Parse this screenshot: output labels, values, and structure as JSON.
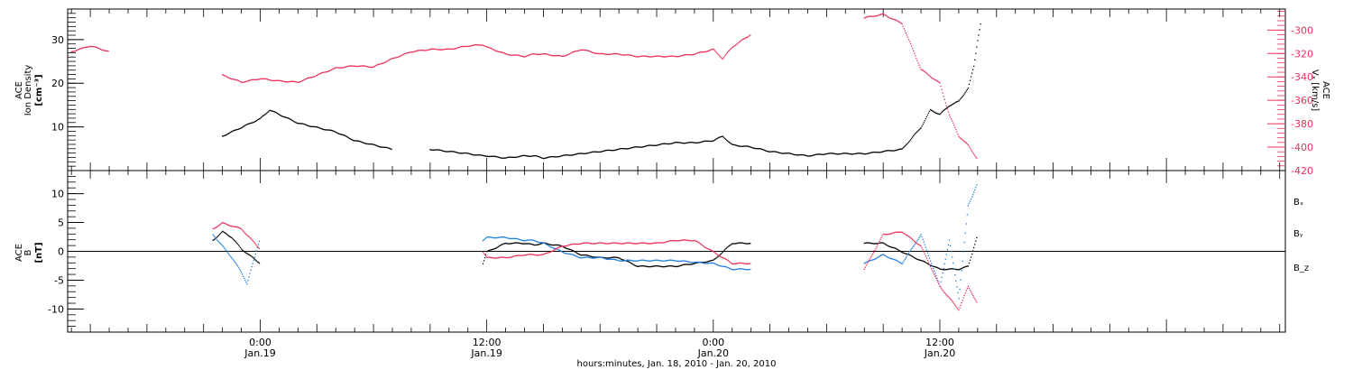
{
  "chart_data": [
    {
      "type": "scatter",
      "panel": "top",
      "ylabel_lines": [
        "ACE",
        "Ion Density",
        "[cm⁻³]"
      ],
      "y2label_lines": [
        "ACE",
        "Vₓ [km/s]"
      ],
      "ylim": [
        0,
        37
      ],
      "y2lim": [
        -420,
        -282
      ],
      "yticks": [
        10,
        20,
        30
      ],
      "y2ticks": [
        -300,
        -320,
        -340,
        -360,
        -380,
        -400,
        -420
      ],
      "series": [
        {
          "color": "#000000",
          "axis": "left",
          "points": [
            [
              -10,
              8
            ],
            [
              -8,
              7
            ],
            [
              -6,
              6.5
            ],
            [
              -4,
              7
            ],
            [
              -2,
              8
            ],
            [
              -1,
              10
            ],
            [
              0,
              12
            ],
            [
              0.5,
              14
            ],
            [
              1,
              13
            ],
            [
              2,
              11
            ],
            [
              3,
              10
            ],
            [
              4,
              9
            ],
            [
              5,
              7
            ],
            [
              6,
              6
            ],
            [
              7,
              5
            ],
            [
              9,
              5
            ],
            [
              10,
              4.5
            ],
            [
              11,
              4
            ],
            [
              11.8,
              3.5
            ],
            [
              12,
              3.5
            ],
            [
              13,
              3
            ],
            [
              14,
              3.5
            ],
            [
              14.5,
              3.5
            ],
            [
              15,
              3
            ],
            [
              16,
              3.5
            ],
            [
              17,
              4
            ],
            [
              18,
              4.5
            ],
            [
              19,
              5
            ],
            [
              20,
              5.5
            ],
            [
              21,
              6
            ],
            [
              22,
              6.5
            ],
            [
              23,
              6.5
            ],
            [
              24,
              7
            ],
            [
              24.5,
              8
            ],
            [
              25,
              6
            ],
            [
              26,
              5.5
            ],
            [
              27,
              4.5
            ],
            [
              28,
              4
            ],
            [
              29,
              3.5
            ],
            [
              30,
              4
            ],
            [
              31,
              4
            ],
            [
              32,
              4
            ],
            [
              33,
              4.5
            ],
            [
              34,
              5
            ],
            [
              35,
              10
            ],
            [
              35.5,
              14
            ],
            [
              36,
              13
            ],
            [
              36.5,
              15
            ],
            [
              37,
              16
            ],
            [
              37.5,
              19
            ],
            [
              37.8,
              24
            ],
            [
              38,
              30
            ],
            [
              38.2,
              35
            ]
          ]
        },
        {
          "color": "#e8325c",
          "axis": "right",
          "points": [
            [
              -10,
              -318
            ],
            [
              -9,
              -313
            ],
            [
              -8,
              -318
            ],
            [
              -6,
              -322
            ],
            [
              -4,
              -330
            ],
            [
              -2,
              -338
            ],
            [
              -1,
              -344
            ],
            [
              0,
              -341
            ],
            [
              1,
              -343
            ],
            [
              2,
              -344
            ],
            [
              3,
              -338
            ],
            [
              4,
              -332
            ],
            [
              5,
              -330
            ],
            [
              6,
              -331
            ],
            [
              7,
              -324
            ],
            [
              8,
              -318
            ],
            [
              9,
              -316
            ],
            [
              10,
              -316
            ],
            [
              11,
              -313
            ],
            [
              11.8,
              -312
            ],
            [
              12,
              -314
            ],
            [
              13,
              -320
            ],
            [
              14,
              -322
            ],
            [
              14.5,
              -320
            ],
            [
              15,
              -320
            ],
            [
              16,
              -322
            ],
            [
              17,
              -316
            ],
            [
              18,
              -320
            ],
            [
              19,
              -320
            ],
            [
              20,
              -322
            ],
            [
              21,
              -322
            ],
            [
              22,
              -322
            ],
            [
              23,
              -320
            ],
            [
              24,
              -316
            ],
            [
              24.5,
              -324
            ],
            [
              25,
              -314
            ],
            [
              26,
              -303
            ],
            [
              28,
              -298
            ],
            [
              30,
              -293
            ],
            [
              32,
              -289
            ],
            [
              33,
              -286
            ],
            [
              34,
              -294
            ],
            [
              35,
              -333
            ],
            [
              36,
              -345
            ],
            [
              36.5,
              -372
            ],
            [
              37,
              -390
            ],
            [
              37.5,
              -398
            ],
            [
              38,
              -410
            ]
          ]
        }
      ]
    },
    {
      "type": "scatter",
      "panel": "bottom",
      "ylabel_lines": [
        "ACE",
        "B",
        "[nT]"
      ],
      "ylim": [
        -14,
        14
      ],
      "yticks": [
        10,
        5,
        0,
        -5,
        -10
      ],
      "series": [
        {
          "name": "Bₓ",
          "color": "#000000",
          "points": [
            [
              -10,
              -1.5
            ],
            [
              -8,
              -0.5
            ],
            [
              -6,
              -0.5
            ],
            [
              -4,
              -0.5
            ],
            [
              -2.5,
              2
            ],
            [
              -2,
              3.5
            ],
            [
              -1.5,
              2.5
            ],
            [
              -1,
              0.5
            ],
            [
              0,
              -2
            ],
            [
              2,
              -2.5
            ],
            [
              4,
              -2.5
            ],
            [
              6,
              -2.5
            ],
            [
              8,
              -1.5
            ],
            [
              10,
              -2
            ],
            [
              11.8,
              -2
            ],
            [
              12,
              0
            ],
            [
              13,
              1.5
            ],
            [
              14,
              1.5
            ],
            [
              14.5,
              1.2
            ],
            [
              15,
              1.5
            ],
            [
              16,
              1
            ],
            [
              17,
              -0.5
            ],
            [
              18,
              -1
            ],
            [
              19,
              -1
            ],
            [
              20,
              -2.5
            ],
            [
              21,
              -2.5
            ],
            [
              22,
              -2.5
            ],
            [
              23,
              -2
            ],
            [
              24,
              -1.5
            ],
            [
              25,
              1.5
            ],
            [
              26,
              1.5
            ],
            [
              28,
              2
            ],
            [
              30,
              2
            ],
            [
              32,
              1.5
            ],
            [
              33,
              1.5
            ],
            [
              34,
              0
            ],
            [
              35,
              -1.5
            ],
            [
              36,
              -3
            ],
            [
              37,
              -3
            ],
            [
              37.5,
              -2.5
            ],
            [
              38,
              3
            ]
          ]
        },
        {
          "name": "Bᵧ",
          "color": "#1f7fe0",
          "points": [
            [
              -10,
              2
            ],
            [
              -8,
              1.8
            ],
            [
              -6,
              1
            ],
            [
              -4,
              0
            ],
            [
              -2.5,
              3
            ],
            [
              -2,
              1
            ],
            [
              -1.5,
              -1
            ],
            [
              -1,
              -3.5
            ],
            [
              -0.7,
              -5.5
            ],
            [
              0,
              2.5
            ],
            [
              2,
              3
            ],
            [
              4,
              3
            ],
            [
              6,
              2.5
            ],
            [
              8,
              2.2
            ],
            [
              10,
              2
            ],
            [
              11.8,
              2
            ],
            [
              12,
              2.5
            ],
            [
              13,
              2.5
            ],
            [
              14,
              2
            ],
            [
              14.5,
              2
            ],
            [
              15,
              1.5
            ],
            [
              16,
              0
            ],
            [
              17,
              -1
            ],
            [
              18,
              -1
            ],
            [
              19,
              -1.5
            ],
            [
              20,
              -1.5
            ],
            [
              21,
              -1.5
            ],
            [
              22,
              -1.5
            ],
            [
              23,
              -1.8
            ],
            [
              24,
              -2
            ],
            [
              25,
              -3
            ],
            [
              26,
              -3
            ],
            [
              28,
              -2.5
            ],
            [
              30,
              -2.5
            ],
            [
              32,
              -2
            ],
            [
              33,
              -0.5
            ],
            [
              34,
              -2
            ],
            [
              35,
              3
            ],
            [
              36,
              -6
            ],
            [
              36.5,
              2
            ],
            [
              37,
              -8
            ],
            [
              37.5,
              8
            ],
            [
              38,
              12
            ]
          ]
        },
        {
          "name": "B_z",
          "color": "#e8325c",
          "points": [
            [
              -10,
              -2.5
            ],
            [
              -8,
              -1.5
            ],
            [
              -6,
              -1
            ],
            [
              -4,
              0
            ],
            [
              -2.5,
              4
            ],
            [
              -2,
              5
            ],
            [
              -1.5,
              4.5
            ],
            [
              -1,
              4
            ],
            [
              0,
              0.5
            ],
            [
              2,
              0.5
            ],
            [
              4,
              0.5
            ],
            [
              6,
              0
            ],
            [
              8,
              0
            ],
            [
              10,
              0
            ],
            [
              11.8,
              0
            ],
            [
              12,
              -1
            ],
            [
              13,
              -1
            ],
            [
              14,
              -0.5
            ],
            [
              14.5,
              -0.5
            ],
            [
              15,
              -0.5
            ],
            [
              16,
              1
            ],
            [
              17,
              1.5
            ],
            [
              18,
              1.5
            ],
            [
              19,
              1.5
            ],
            [
              20,
              1.5
            ],
            [
              21,
              1.5
            ],
            [
              22,
              2
            ],
            [
              23,
              2
            ],
            [
              24,
              0
            ],
            [
              25,
              -2
            ],
            [
              26,
              -2
            ],
            [
              28,
              -3
            ],
            [
              30,
              -4
            ],
            [
              32,
              -3
            ],
            [
              33,
              3
            ],
            [
              34,
              3.5
            ],
            [
              35,
              1
            ],
            [
              36,
              -6
            ],
            [
              37,
              -10
            ],
            [
              37.5,
              -6
            ],
            [
              38,
              -9
            ]
          ]
        }
      ]
    }
  ],
  "xaxis": {
    "xlim_hours": [
      -10.2,
      54.3
    ],
    "tick_labels": [
      {
        "hour": 0,
        "time": "0:00",
        "date": "Jan.19"
      },
      {
        "hour": 12,
        "time": "12:00",
        "date": "Jan.19"
      },
      {
        "hour": 24,
        "time": "0:00",
        "date": "Jan.20"
      },
      {
        "hour": 36,
        "time": "12:00",
        "date": "Jan.20"
      }
    ],
    "xlabel": "hours:minutes, Jan. 18, 2010 - Jan. 20, 2010"
  },
  "colors": {
    "black": "#000000",
    "red": "#e8325c",
    "blue": "#1f7fe0"
  }
}
